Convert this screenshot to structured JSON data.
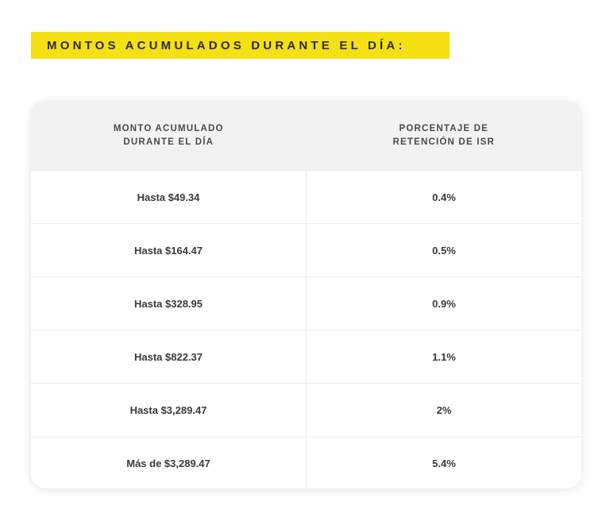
{
  "title": "MONTOS ACUMULADOS DURANTE EL DÍA:",
  "colors": {
    "title_bg": "#f5e014",
    "header_bg": "#f2f2f2",
    "text": "#3a3a3a"
  },
  "table": {
    "headers": [
      [
        "MONTO ACUMULADO",
        "DURANTE EL DÍA"
      ],
      [
        "PORCENTAJE DE",
        "RETENCIÓN DE ISR"
      ]
    ],
    "rows": [
      {
        "amount": "Hasta $49.34",
        "rate": "0.4%"
      },
      {
        "amount": "Hasta $164.47",
        "rate": "0.5%"
      },
      {
        "amount": "Hasta $328.95",
        "rate": "0.9%"
      },
      {
        "amount": "Hasta $822.37",
        "rate": "1.1%"
      },
      {
        "amount": "Hasta $3,289.47",
        "rate": "2%"
      },
      {
        "amount": "Más de $3,289.47",
        "rate": "5.4%"
      }
    ]
  }
}
